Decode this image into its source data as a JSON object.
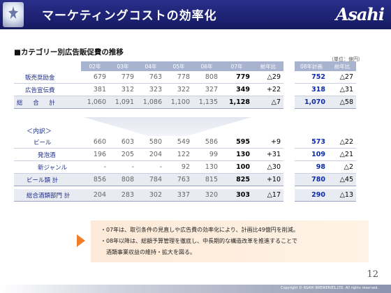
{
  "header": {
    "title": "マーケティングコストの効率化",
    "logo": "Asahi"
  },
  "section_title": "■カテゴリー別広告販促費の推移",
  "unit": "（単位：億円）",
  "columns": [
    "02年",
    "03年",
    "04年",
    "05年",
    "06年",
    "07年",
    "前年比",
    "08年計画",
    "前年比"
  ],
  "table1": [
    {
      "label": "販売奨励金",
      "values": [
        "679",
        "779",
        "763",
        "778",
        "808"
      ],
      "y07": "779",
      "diff07": "△29",
      "plan08": "752",
      "diff08": "△27"
    },
    {
      "label": "広告宣伝費",
      "values": [
        "381",
        "312",
        "323",
        "322",
        "327"
      ],
      "y07": "349",
      "diff07": "+22",
      "plan08": "318",
      "diff08": "△31"
    },
    {
      "label": "総 合 計",
      "values": [
        "1,060",
        "1,091",
        "1,086",
        "1,100",
        "1,135"
      ],
      "y07": "1,128",
      "diff07": "△7",
      "plan08": "1,070",
      "diff08": "△58"
    }
  ],
  "naiyaku": "＜内訳＞",
  "table2": [
    {
      "label": "ビール",
      "values": [
        "660",
        "603",
        "580",
        "549",
        "586"
      ],
      "y07": "595",
      "diff07": "+9",
      "plan08": "573",
      "diff08": "△22"
    },
    {
      "label": "発泡酒",
      "values": [
        "196",
        "205",
        "204",
        "122",
        "99"
      ],
      "y07": "130",
      "diff07": "+31",
      "plan08": "109",
      "diff08": "△21"
    },
    {
      "label": "新ジャンル",
      "values": [
        "-",
        "-",
        "-",
        "92",
        "130"
      ],
      "y07": "100",
      "diff07": "△30",
      "plan08": "98",
      "diff08": "△2"
    },
    {
      "label": "ビール類 計",
      "values": [
        "856",
        "808",
        "784",
        "763",
        "815"
      ],
      "y07": "825",
      "diff07": "+10",
      "plan08": "780",
      "diff08": "△45"
    },
    {
      "label": "総合酒類部門 計",
      "values": [
        "204",
        "283",
        "302",
        "337",
        "320"
      ],
      "y07": "303",
      "diff07": "△17",
      "plan08": "290",
      "diff08": "△13"
    }
  ],
  "notes": [
    "・07年は、取引条件の見直しや広告費の効率化により、計画比49億円を削減。",
    "・08年以降は、総額予算管理を徹底し、中長期的な構造改革を推進することで",
    "　酒類事業収益の維持・拡大を図る。"
  ],
  "page_number": "12",
  "copyright": "Copyright © ASAHI BREWERIES,LTD. All rights reserved."
}
